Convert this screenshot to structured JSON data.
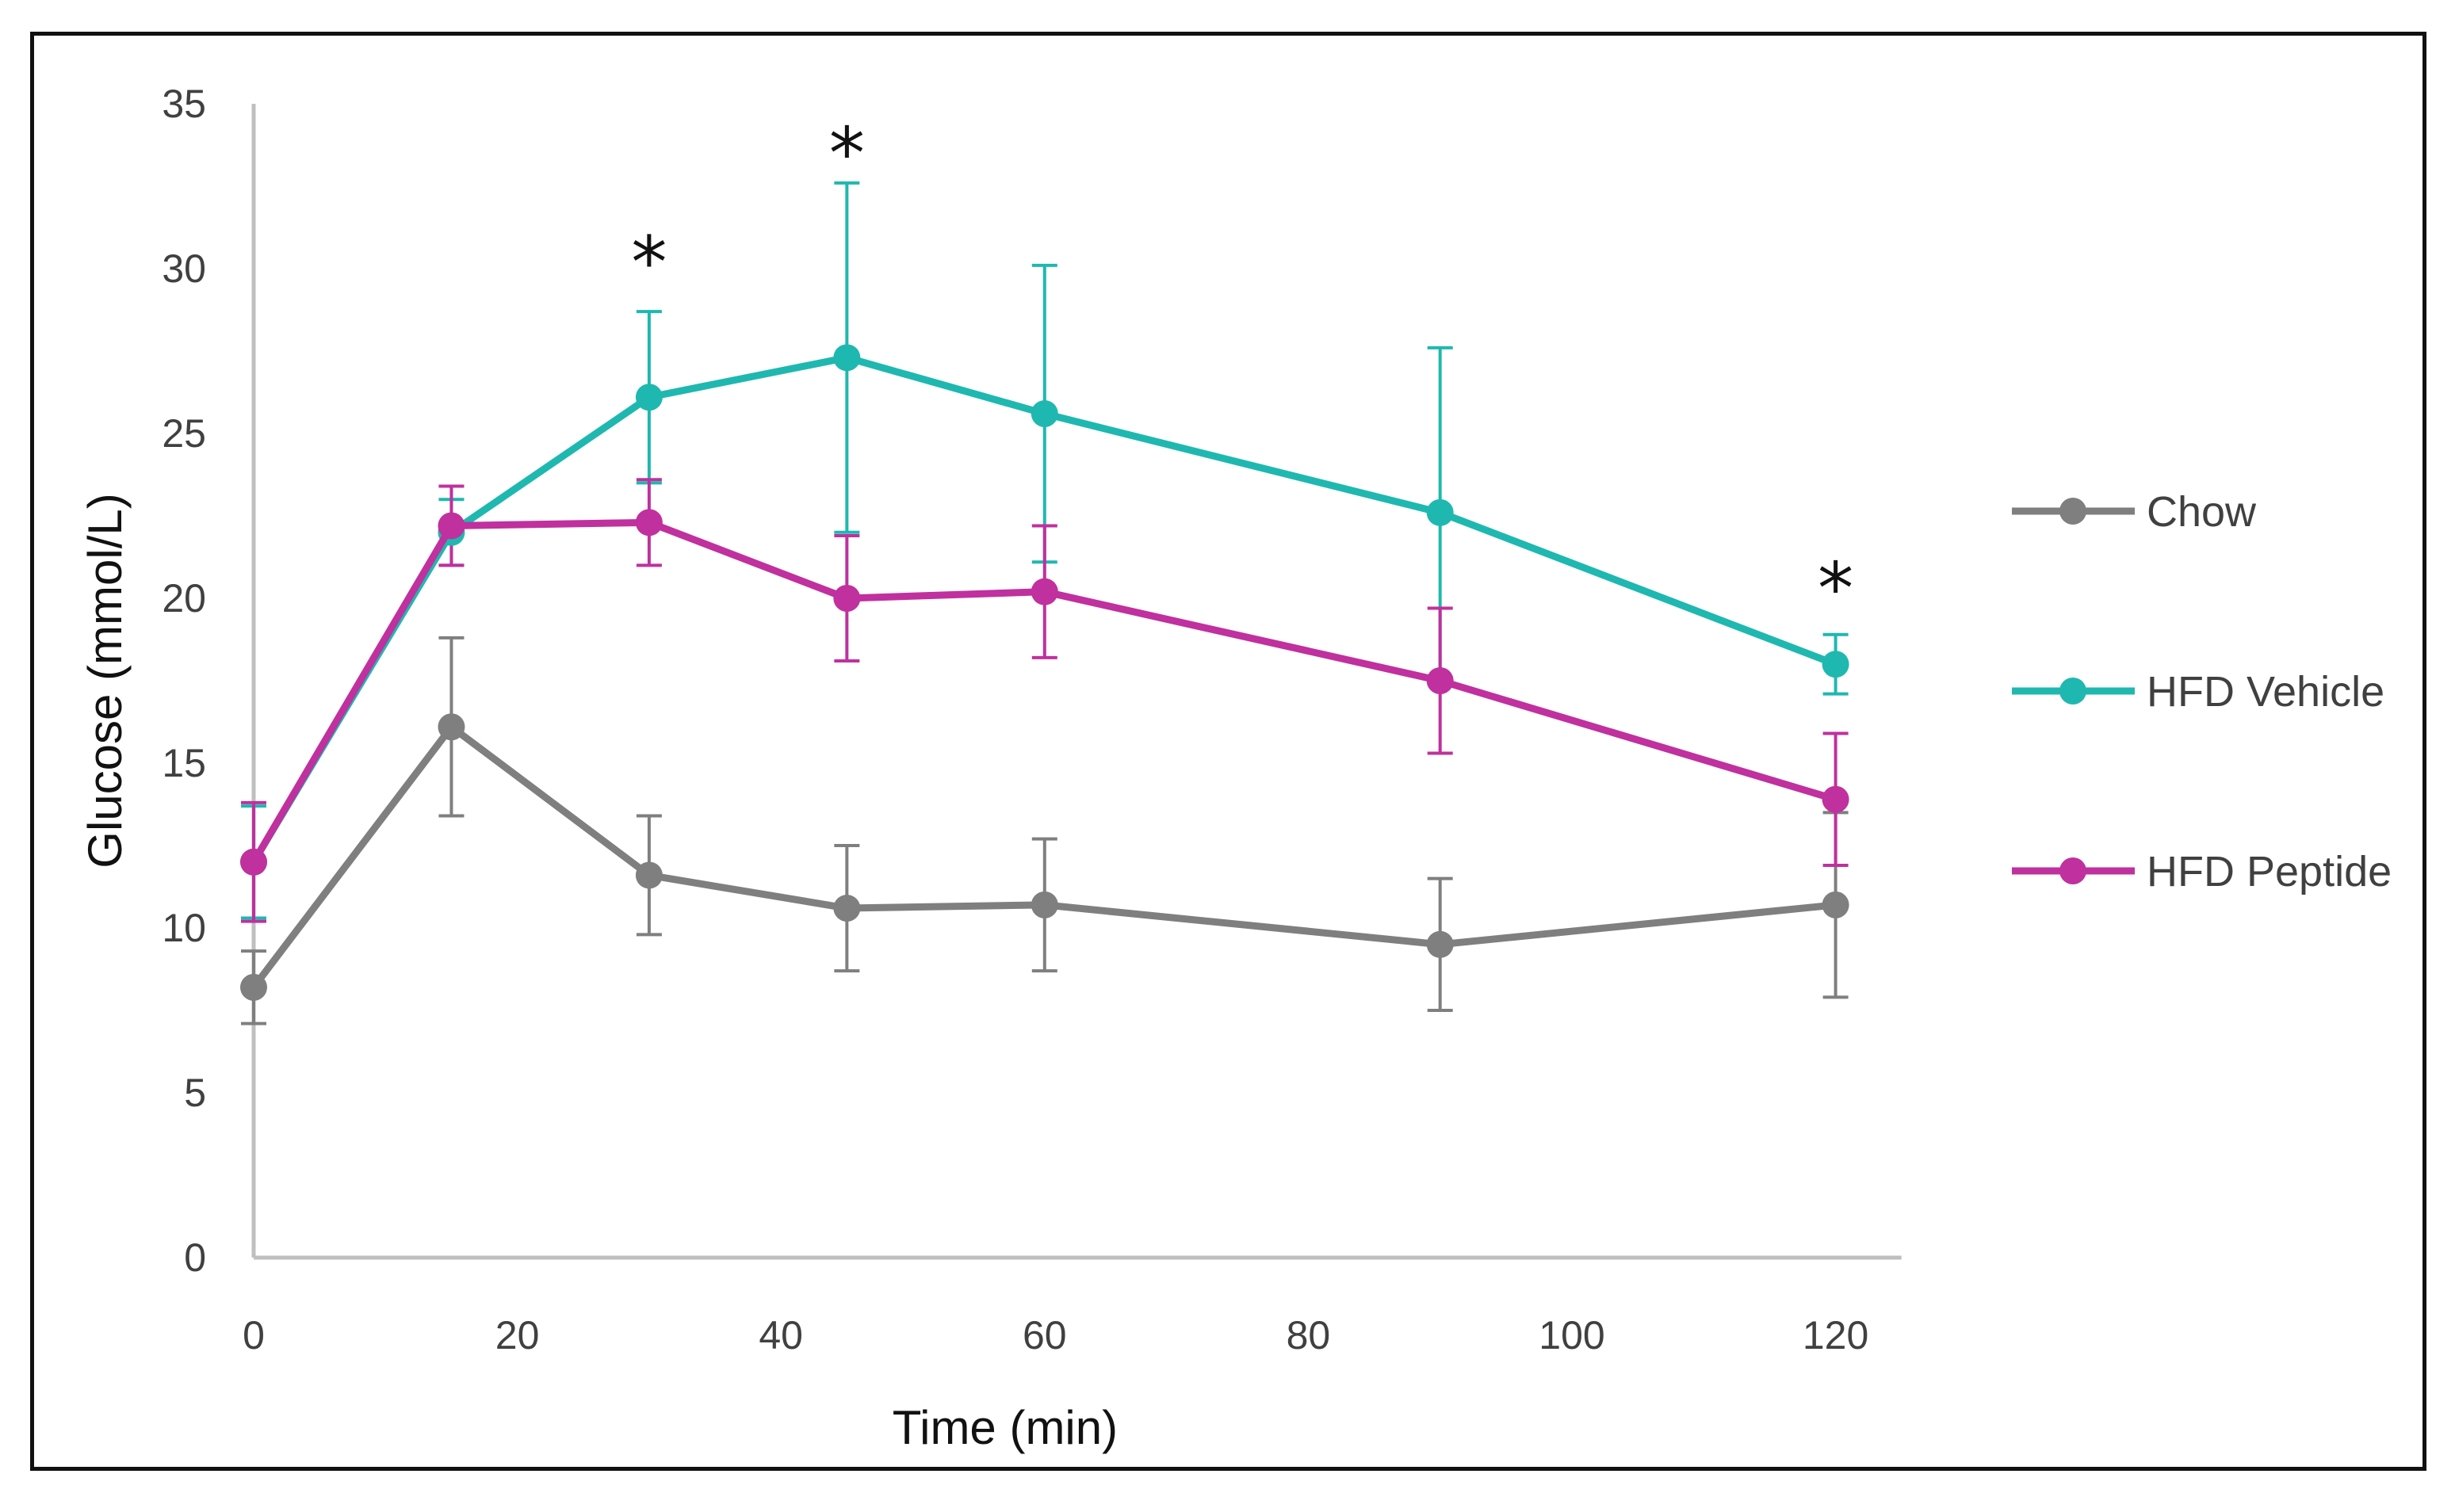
{
  "chart_data": {
    "type": "line",
    "title": "",
    "xlabel": "Time (min)",
    "ylabel": "Glucose (mmol/L)",
    "xlim": [
      0,
      125
    ],
    "ylim": [
      0,
      35
    ],
    "xticks": [
      0,
      20,
      40,
      60,
      80,
      100,
      120
    ],
    "yticks": [
      0,
      5,
      10,
      15,
      20,
      25,
      30,
      35
    ],
    "grid": false,
    "legend_position": "right",
    "x": [
      0,
      15,
      30,
      45,
      60,
      90,
      120
    ],
    "series": [
      {
        "name": "Chow",
        "color": "#7f7f7f",
        "values": [
          8.2,
          16.1,
          11.6,
          10.6,
          10.7,
          9.5,
          10.7
        ],
        "errors": [
          1.1,
          2.7,
          1.8,
          1.9,
          2.0,
          2.0,
          2.8
        ]
      },
      {
        "name": "HFD Vehicle",
        "color": "#1fb8b0",
        "values": [
          12.0,
          22.0,
          26.1,
          27.3,
          25.6,
          22.6,
          18.0
        ],
        "errors": [
          1.7,
          1.0,
          2.6,
          5.3,
          4.5,
          5.0,
          0.9
        ]
      },
      {
        "name": "HFD Peptide",
        "color": "#c0309e",
        "values": [
          12.0,
          22.2,
          22.3,
          20.0,
          20.2,
          17.5,
          13.9
        ],
        "errors": [
          1.8,
          1.2,
          1.3,
          1.9,
          2.0,
          2.2,
          2.0
        ]
      }
    ],
    "annotations": [
      {
        "text": "*",
        "x": 30,
        "y": 30.4
      },
      {
        "text": "*",
        "x": 45,
        "y": 33.7
      },
      {
        "text": "*",
        "x": 120,
        "y": 20.5
      }
    ]
  }
}
